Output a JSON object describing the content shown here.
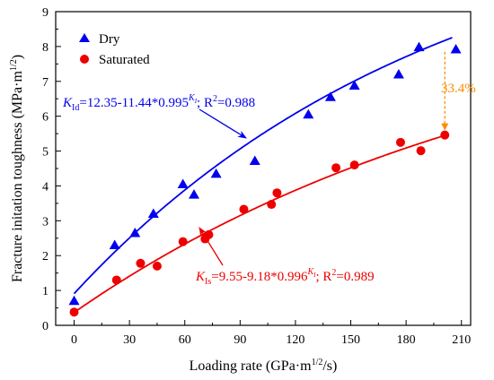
{
  "chart_data": {
    "type": "scatter",
    "title": "",
    "xlabel": "Loading rate (GPa·m",
    "xlabel_sup": "1/2",
    "xlabel_end": "/s)",
    "ylabel": "Fracture initation toughness (MPa·m",
    "ylabel_sup": "1/2",
    "ylabel_end": ")",
    "xlim": [
      -10,
      215
    ],
    "ylim": [
      0,
      9
    ],
    "x_ticks": [
      0,
      30,
      60,
      90,
      120,
      150,
      180,
      210
    ],
    "y_ticks": [
      0,
      1,
      2,
      3,
      4,
      5,
      6,
      7,
      8,
      9
    ],
    "grid": false,
    "legend_position": "top-left",
    "series": [
      {
        "name": "Dry",
        "marker": "triangle",
        "color": "#0000ee",
        "points": [
          [
            0,
            0.7
          ],
          [
            22,
            2.3
          ],
          [
            33,
            2.65
          ],
          [
            43,
            3.2
          ],
          [
            59,
            4.05
          ],
          [
            65,
            3.75
          ],
          [
            77,
            4.35
          ],
          [
            98,
            4.72
          ],
          [
            127,
            6.05
          ],
          [
            139,
            6.55
          ],
          [
            152,
            6.88
          ],
          [
            176,
            7.2
          ],
          [
            187,
            7.98
          ],
          [
            207,
            7.92
          ]
        ]
      },
      {
        "name": "Saturated",
        "marker": "circle",
        "color": "#ee0000",
        "points": [
          [
            0,
            0.38
          ],
          [
            23,
            1.3
          ],
          [
            36,
            1.78
          ],
          [
            45,
            1.7
          ],
          [
            59,
            2.4
          ],
          [
            71,
            2.48
          ],
          [
            73,
            2.6
          ],
          [
            92,
            3.33
          ],
          [
            107,
            3.47
          ],
          [
            110,
            3.8
          ],
          [
            142,
            4.52
          ],
          [
            152,
            4.6
          ],
          [
            177,
            5.25
          ],
          [
            188,
            5.01
          ],
          [
            201,
            5.46
          ]
        ]
      }
    ],
    "fits": [
      {
        "series": "Dry",
        "a": 12.35,
        "b": 11.44,
        "base": 0.995,
        "x_range": [
          0,
          205
        ],
        "color": "#0000ee"
      },
      {
        "series": "Saturated",
        "a": 9.55,
        "b": 9.18,
        "base": 0.996,
        "x_range": [
          0,
          201
        ],
        "color": "#ee0000"
      }
    ],
    "annotations": {
      "dry_equation": {
        "k": "K",
        "sub": "Id",
        "body": "=12.35-11.44*0.995",
        "exp_k": "K",
        "exp_sub": "I",
        "tail": "; R",
        "r2_sup": "2",
        "r2_val": "=0.988",
        "color": "#0000ee"
      },
      "sat_equation": {
        "k": "K",
        "sub": "Is",
        "body": "=9.55-9.18*0.996",
        "exp_k": "K",
        "exp_sub": "I",
        "tail": "; R",
        "r2_sup": "2",
        "r2_val": "=0.989",
        "color": "#ee0000"
      },
      "difference_label": "33.4%",
      "difference_color": "#ff8c00",
      "difference_x": 201,
      "difference_y_top": 7.95,
      "difference_y_bottom": 5.46
    }
  }
}
